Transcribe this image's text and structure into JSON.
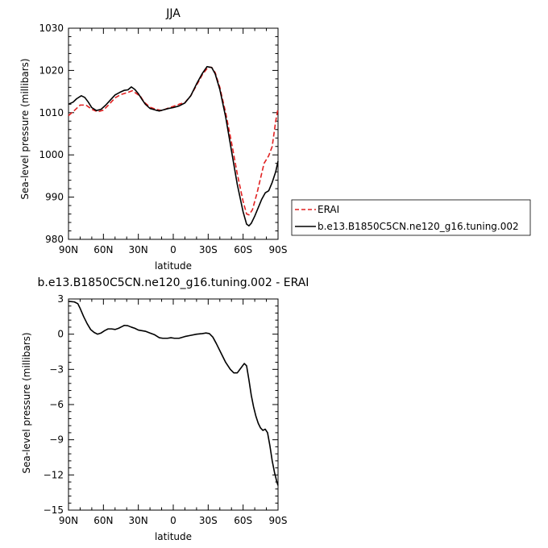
{
  "chart_data": [
    {
      "type": "line",
      "title": "JJA",
      "xlabel": "latitude",
      "ylabel": "Sea-level pressure (millibars)",
      "xlim": [
        90,
        -90
      ],
      "ylim": [
        980,
        1030
      ],
      "x_ticks": [
        90,
        60,
        30,
        0,
        -30,
        -60,
        -90
      ],
      "x_tick_labels": [
        "90N",
        "60N",
        "30N",
        "0",
        "30S",
        "60S",
        "90S"
      ],
      "y_ticks": [
        980,
        990,
        1000,
        1010,
        1020,
        1030
      ],
      "y_tick_labels": [
        "980",
        "990",
        "1000",
        "1010",
        "1020",
        "1030"
      ],
      "legend_position": "right",
      "series": [
        {
          "name": "ERAI",
          "color": "#e02020",
          "dash": "dashed",
          "points": [
            [
              90,
              1009.3
            ],
            [
              85,
              1010.5
            ],
            [
              80,
              1011.8
            ],
            [
              75,
              1011.8
            ],
            [
              70,
              1010.8
            ],
            [
              65,
              1010.2
            ],
            [
              60,
              1010.6
            ],
            [
              55,
              1012.0
            ],
            [
              50,
              1013.5
            ],
            [
              45,
              1014.3
            ],
            [
              40,
              1014.7
            ],
            [
              35,
              1015.2
            ],
            [
              32,
              1014.6
            ],
            [
              28,
              1013.8
            ],
            [
              25,
              1012.5
            ],
            [
              20,
              1011.3
            ],
            [
              15,
              1010.8
            ],
            [
              10,
              1010.5
            ],
            [
              5,
              1011.0
            ],
            [
              0,
              1011.5
            ],
            [
              -5,
              1012.0
            ],
            [
              -10,
              1012.4
            ],
            [
              -15,
              1014.0
            ],
            [
              -20,
              1016.5
            ],
            [
              -25,
              1019.0
            ],
            [
              -30,
              1020.8
            ],
            [
              -33,
              1020.7
            ],
            [
              -36,
              1019.5
            ],
            [
              -40,
              1016.0
            ],
            [
              -45,
              1010.0
            ],
            [
              -50,
              1003.0
            ],
            [
              -55,
              995.5
            ],
            [
              -60,
              989.0
            ],
            [
              -63,
              986.0
            ],
            [
              -65,
              985.8
            ],
            [
              -68,
              987.0
            ],
            [
              -72,
              991.0
            ],
            [
              -75,
              994.5
            ],
            [
              -78,
              998.0
            ],
            [
              -82,
              999.8
            ],
            [
              -85,
              1002.0
            ],
            [
              -88,
              1008.0
            ],
            [
              -90,
              1011.0
            ]
          ]
        },
        {
          "name": "b.e13.B1850C5CN.ne120_g16.tuning.002",
          "color": "#000000",
          "dash": "solid",
          "points": [
            [
              90,
              1012.0
            ],
            [
              86,
              1012.5
            ],
            [
              83,
              1013.3
            ],
            [
              79,
              1014.0
            ],
            [
              76,
              1013.6
            ],
            [
              73,
              1012.5
            ],
            [
              70,
              1011.2
            ],
            [
              66,
              1010.5
            ],
            [
              62,
              1010.8
            ],
            [
              58,
              1011.8
            ],
            [
              54,
              1013.0
            ],
            [
              50,
              1014.2
            ],
            [
              46,
              1014.8
            ],
            [
              42,
              1015.3
            ],
            [
              39,
              1015.4
            ],
            [
              36,
              1016.1
            ],
            [
              33,
              1015.5
            ],
            [
              30,
              1014.5
            ],
            [
              27,
              1013.2
            ],
            [
              24,
              1012.0
            ],
            [
              20,
              1011.0
            ],
            [
              15,
              1010.6
            ],
            [
              12,
              1010.4
            ],
            [
              8,
              1010.7
            ],
            [
              4,
              1011.0
            ],
            [
              0,
              1011.2
            ],
            [
              -5,
              1011.6
            ],
            [
              -10,
              1012.3
            ],
            [
              -15,
              1014.0
            ],
            [
              -20,
              1016.8
            ],
            [
              -25,
              1019.3
            ],
            [
              -29,
              1020.9
            ],
            [
              -33,
              1020.7
            ],
            [
              -36,
              1019.2
            ],
            [
              -40,
              1015.5
            ],
            [
              -45,
              1009.0
            ],
            [
              -50,
              1001.0
            ],
            [
              -55,
              993.0
            ],
            [
              -60,
              986.5
            ],
            [
              -63,
              983.6
            ],
            [
              -65,
              983.2
            ],
            [
              -67,
              983.8
            ],
            [
              -70,
              985.5
            ],
            [
              -73,
              987.5
            ],
            [
              -76,
              989.5
            ],
            [
              -79,
              991.0
            ],
            [
              -82,
              991.5
            ],
            [
              -85,
              993.5
            ],
            [
              -88,
              996.0
            ],
            [
              -90,
              998.5
            ]
          ]
        }
      ]
    },
    {
      "type": "line",
      "title": "b.e13.B1850C5CN.ne120_g16.tuning.002 - ERAI",
      "xlabel": "latitude",
      "ylabel": "Sea-level pressure (millibars)",
      "xlim": [
        90,
        -90
      ],
      "ylim": [
        -15,
        3
      ],
      "x_ticks": [
        90,
        60,
        30,
        0,
        -30,
        -60,
        -90
      ],
      "x_tick_labels": [
        "90N",
        "60N",
        "30N",
        "0",
        "30S",
        "60S",
        "90S"
      ],
      "y_ticks": [
        -15,
        -12,
        -9,
        -6,
        -3,
        0,
        3
      ],
      "y_tick_labels": [
        "−15",
        "−12",
        "−9",
        "−6",
        "−3",
        "0",
        "3"
      ],
      "series": [
        {
          "color": "#000000",
          "dash": "solid",
          "points": [
            [
              90,
              2.8
            ],
            [
              85,
              2.75
            ],
            [
              82,
              2.6
            ],
            [
              80,
              2.2
            ],
            [
              77,
              1.5
            ],
            [
              74,
              0.9
            ],
            [
              71,
              0.4
            ],
            [
              68,
              0.15
            ],
            [
              65,
              0.0
            ],
            [
              62,
              0.1
            ],
            [
              59,
              0.3
            ],
            [
              56,
              0.45
            ],
            [
              53,
              0.45
            ],
            [
              50,
              0.4
            ],
            [
              47,
              0.5
            ],
            [
              44,
              0.65
            ],
            [
              42,
              0.75
            ],
            [
              39,
              0.72
            ],
            [
              36,
              0.6
            ],
            [
              33,
              0.5
            ],
            [
              30,
              0.35
            ],
            [
              27,
              0.3
            ],
            [
              24,
              0.25
            ],
            [
              20,
              0.1
            ],
            [
              16,
              -0.05
            ],
            [
              12,
              -0.3
            ],
            [
              9,
              -0.35
            ],
            [
              5,
              -0.35
            ],
            [
              2,
              -0.3
            ],
            [
              -1,
              -0.35
            ],
            [
              -5,
              -0.35
            ],
            [
              -10,
              -0.2
            ],
            [
              -15,
              -0.1
            ],
            [
              -20,
              0.0
            ],
            [
              -25,
              0.05
            ],
            [
              -28,
              0.1
            ],
            [
              -31,
              0.05
            ],
            [
              -34,
              -0.25
            ],
            [
              -37,
              -0.8
            ],
            [
              -41,
              -1.6
            ],
            [
              -45,
              -2.4
            ],
            [
              -49,
              -3.0
            ],
            [
              -52,
              -3.3
            ],
            [
              -55,
              -3.3
            ],
            [
              -58,
              -2.9
            ],
            [
              -61,
              -2.5
            ],
            [
              -63,
              -2.7
            ],
            [
              -65,
              -3.9
            ],
            [
              -67,
              -5.2
            ],
            [
              -69,
              -6.2
            ],
            [
              -71,
              -7.0
            ],
            [
              -73,
              -7.6
            ],
            [
              -75,
              -8.0
            ],
            [
              -77,
              -8.2
            ],
            [
              -79,
              -8.1
            ],
            [
              -81,
              -8.4
            ],
            [
              -83,
              -9.5
            ],
            [
              -85,
              -10.8
            ],
            [
              -87,
              -11.8
            ],
            [
              -89,
              -12.6
            ],
            [
              -90,
              -12.9
            ]
          ]
        }
      ]
    }
  ]
}
